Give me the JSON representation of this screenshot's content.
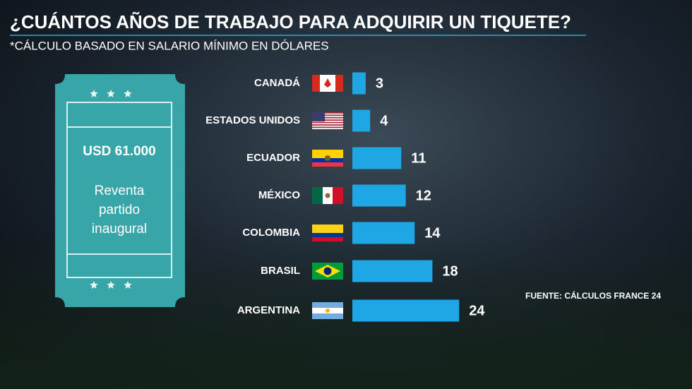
{
  "chart_data": {
    "type": "bar",
    "orientation": "horizontal",
    "title": "¿CUÁNTOS AÑOS DE TRABAJO PARA ADQUIRIR UN TIQUETE?",
    "subtitle": "*CÁLCULO BASADO EN SALARIO MÍNIMO EN DÓLARES",
    "source": "FUENTE: CÁLCULOS FRANCE 24",
    "categories": [
      "CANADÁ",
      "ESTADOS UNIDOS",
      "ECUADOR",
      "MÉXICO",
      "COLOMBIA",
      "BRASIL",
      "ARGENTINA"
    ],
    "values": [
      3,
      4,
      11,
      12,
      14,
      18,
      24
    ],
    "color": "#1ea7e4"
  },
  "ticket": {
    "price": "USD 61.000",
    "description": [
      "Reventa",
      "partido",
      "inaugural"
    ]
  }
}
